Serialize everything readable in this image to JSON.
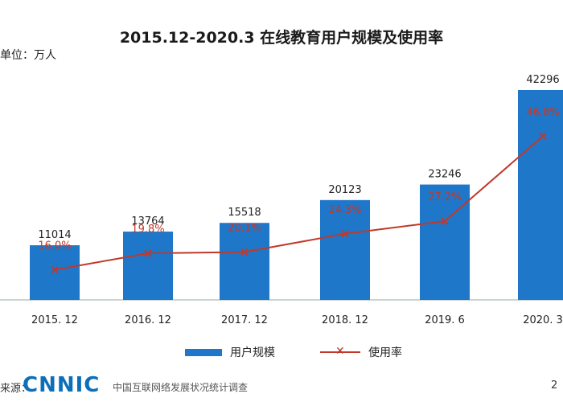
{
  "chart_data": {
    "type": "bar",
    "title": "2015.12-2020.3 在线教育用户规模及使用率",
    "unit_label": "单位：万人",
    "categories": [
      "2015. 12",
      "2016. 12",
      "2017. 12",
      "2018. 12",
      "2019. 6",
      "2020. 3"
    ],
    "series": [
      {
        "name": "用户规模",
        "type": "bar",
        "values": [
          11014,
          13764,
          15518,
          20123,
          23246,
          42296
        ],
        "color": "#1f77c9"
      },
      {
        "name": "使用率",
        "type": "line",
        "values": [
          16.0,
          19.8,
          20.1,
          24.3,
          27.2,
          46.8
        ],
        "labels": [
          "16.0%",
          "19.8%",
          "20.1%",
          "24.3%",
          "27.2%",
          "46.8%"
        ],
        "color": "#c0392b",
        "marker": "x"
      }
    ],
    "legend": "bottom-center",
    "grid": false
  },
  "footer": {
    "source_prefix": "来源：",
    "logo_text": "CNNIC",
    "source_name": "中国互联网络发展状况统计调查",
    "page_number": "2"
  }
}
